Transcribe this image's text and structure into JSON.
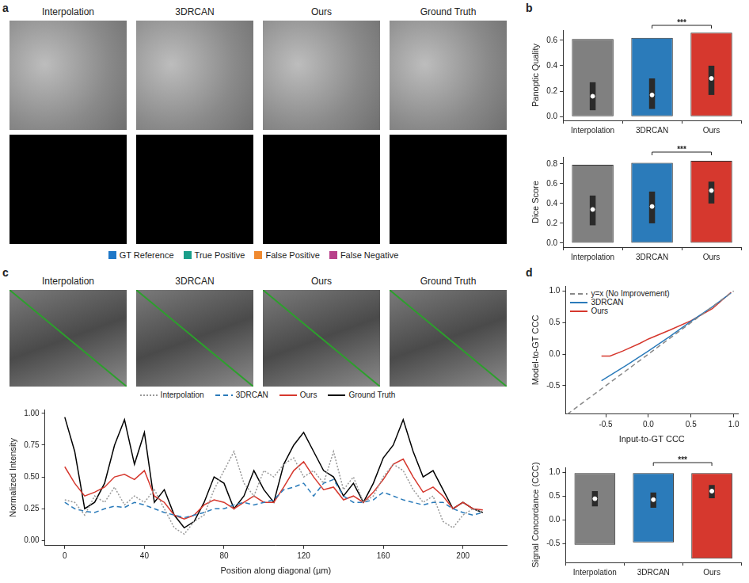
{
  "panel_letters": [
    "a",
    "b",
    "c",
    "d"
  ],
  "images": {
    "a": {
      "titles": [
        "Interpolation",
        "3DRCAN",
        "Ours",
        "Ground Truth"
      ],
      "mask_legend": [
        {
          "name": "GT Reference",
          "color": "#1f78c8"
        },
        {
          "name": "True Positive",
          "color": "#1a9e8a"
        },
        {
          "name": "False Positive",
          "color": "#f08a30"
        },
        {
          "name": "False Negative",
          "color": "#b8408a"
        }
      ]
    },
    "c": {
      "titles": [
        "Interpolation",
        "3DRCAN",
        "Ours",
        "Ground Truth"
      ]
    }
  },
  "chart_data": [
    {
      "type": "violin",
      "y_label": "Panoptic Quality",
      "categories": [
        "Interpolation",
        "3DRCAN",
        "Ours"
      ],
      "colors": [
        "#808080",
        "#2b7bba",
        "#d6382e"
      ],
      "min": [
        0,
        0,
        0
      ],
      "q1": [
        0.05,
        0.06,
        0.17
      ],
      "median": [
        0.16,
        0.17,
        0.3
      ],
      "q3": [
        0.27,
        0.3,
        0.4
      ],
      "max": [
        0.61,
        0.62,
        0.66
      ],
      "ylim": [
        -0.03,
        0.68
      ],
      "yticks": [
        {
          "value": 0,
          "label": "0.0"
        },
        0.2,
        0.4,
        0.6
      ],
      "grid": false,
      "annotations": [
        {
          "text": "***",
          "from": "3DRCAN",
          "to": "Ours"
        }
      ]
    },
    {
      "type": "violin",
      "y_label": "Dice Score",
      "categories": [
        "Interpolation",
        "3DRCAN",
        "Ours"
      ],
      "colors": [
        "#808080",
        "#2b7bba",
        "#d6382e"
      ],
      "min": [
        0,
        0,
        0
      ],
      "q1": [
        0.18,
        0.2,
        0.4
      ],
      "median": [
        0.34,
        0.37,
        0.53
      ],
      "q3": [
        0.48,
        0.52,
        0.62
      ],
      "max": [
        0.79,
        0.81,
        0.83
      ],
      "ylim": [
        -0.04,
        0.87
      ],
      "yticks": [
        {
          "value": 0,
          "label": "0.0"
        },
        0.2,
        0.4,
        0.6,
        0.8
      ],
      "grid": false,
      "annotations": [
        {
          "text": "***",
          "from": "3DRCAN",
          "to": "Ours"
        }
      ]
    },
    {
      "type": "line",
      "x_label": "Position along diagonal (µm)",
      "y_label": "Normalized Intensity",
      "x": [
        0,
        5,
        10,
        15,
        20,
        25,
        30,
        35,
        40,
        45,
        50,
        55,
        60,
        65,
        70,
        75,
        80,
        85,
        90,
        95,
        100,
        105,
        110,
        115,
        120,
        125,
        130,
        135,
        140,
        145,
        150,
        155,
        160,
        165,
        170,
        175,
        180,
        185,
        190,
        195,
        200,
        205,
        210
      ],
      "series": [
        {
          "name": "Interpolation",
          "color": "#999999",
          "line_style": "dotted",
          "values": [
            0.32,
            0.3,
            0.2,
            0.35,
            0.3,
            0.42,
            0.28,
            0.35,
            0.3,
            0.4,
            0.25,
            0.1,
            0.05,
            0.15,
            0.2,
            0.4,
            0.55,
            0.7,
            0.45,
            0.35,
            0.55,
            0.5,
            0.6,
            0.65,
            0.5,
            0.55,
            0.45,
            0.7,
            0.4,
            0.5,
            0.3,
            0.35,
            0.5,
            0.6,
            0.55,
            0.4,
            0.3,
            0.35,
            0.15,
            0.1,
            0.2,
            0.25,
            0.22
          ]
        },
        {
          "name": "3DRCAN",
          "color": "#2b7bba",
          "line_style": "dashed",
          "values": [
            0.3,
            0.25,
            0.23,
            0.22,
            0.25,
            0.27,
            0.26,
            0.3,
            0.28,
            0.25,
            0.22,
            0.2,
            0.18,
            0.2,
            0.22,
            0.25,
            0.25,
            0.28,
            0.3,
            0.28,
            0.3,
            0.32,
            0.4,
            0.42,
            0.45,
            0.35,
            0.45,
            0.48,
            0.35,
            0.3,
            0.3,
            0.32,
            0.38,
            0.35,
            0.32,
            0.3,
            0.28,
            0.3,
            0.3,
            0.25,
            0.22,
            0.2,
            0.22
          ]
        },
        {
          "name": "Ours",
          "color": "#d6382e",
          "line_style": "solid",
          "values": [
            0.58,
            0.45,
            0.35,
            0.38,
            0.42,
            0.5,
            0.52,
            0.48,
            0.55,
            0.35,
            0.3,
            0.2,
            0.17,
            0.2,
            0.28,
            0.32,
            0.3,
            0.25,
            0.3,
            0.35,
            0.3,
            0.3,
            0.42,
            0.55,
            0.62,
            0.5,
            0.4,
            0.42,
            0.32,
            0.35,
            0.3,
            0.38,
            0.48,
            0.6,
            0.64,
            0.5,
            0.38,
            0.42,
            0.35,
            0.25,
            0.3,
            0.25,
            0.24
          ]
        },
        {
          "name": "Ground Truth",
          "color": "#000000",
          "line_style": "solid",
          "values": [
            0.97,
            0.7,
            0.25,
            0.3,
            0.45,
            0.75,
            0.95,
            0.6,
            0.85,
            0.3,
            0.4,
            0.2,
            0.1,
            0.15,
            0.3,
            0.5,
            0.45,
            0.25,
            0.35,
            0.55,
            0.4,
            0.3,
            0.6,
            0.75,
            0.85,
            0.7,
            0.55,
            0.5,
            0.35,
            0.45,
            0.3,
            0.45,
            0.65,
            0.75,
            0.95,
            0.7,
            0.5,
            0.55,
            0.4,
            0.25,
            0.3,
            0.25,
            0.22
          ]
        }
      ],
      "xlim": [
        -10,
        222
      ],
      "xticks": [
        0,
        40,
        80,
        120,
        160,
        200
      ],
      "ylim": [
        -0.04,
        1.03
      ],
      "yticks": [
        {
          "value": 0,
          "label": "0.00"
        },
        0.25,
        {
          "value": 0.5,
          "label": "0.50"
        },
        0.75,
        {
          "value": 1,
          "label": "1.00"
        }
      ],
      "grid": false,
      "legend": "top"
    },
    {
      "type": "line",
      "x_label": "Input-to-GT CCC",
      "y_label": "Model-to-GT CCC",
      "series": [
        {
          "name": "y=x (No Improvement)",
          "color": "#888888",
          "line_style": "dashed",
          "x": [
            -0.95,
            1.0
          ],
          "values": [
            -0.95,
            1.0
          ]
        },
        {
          "name": "3DRCAN",
          "color": "#2b7bba",
          "line_style": "solid",
          "x": [
            -0.55,
            -0.25,
            0,
            0.25,
            0.5,
            0.75,
            0.97
          ],
          "values": [
            -0.42,
            -0.17,
            0.05,
            0.28,
            0.52,
            0.75,
            0.97
          ]
        },
        {
          "name": "Ours",
          "color": "#d6382e",
          "line_style": "solid",
          "x": [
            -0.55,
            -0.45,
            -0.3,
            -0.1,
            0,
            0.25,
            0.5,
            0.75,
            0.97
          ],
          "values": [
            -0.03,
            -0.03,
            0.05,
            0.17,
            0.24,
            0.38,
            0.53,
            0.72,
            0.98
          ]
        }
      ],
      "xlim": [
        -0.97,
        1.05
      ],
      "xticks": [
        -0.5,
        {
          "value": 0,
          "label": "0.0"
        },
        0.5,
        {
          "value": 1,
          "label": "1.0"
        }
      ],
      "ylim": [
        -0.95,
        1.08
      ],
      "yticks": [
        -0.5,
        {
          "value": 0,
          "label": "0.0"
        },
        0.5,
        {
          "value": 1,
          "label": "1.0"
        }
      ],
      "grid": false,
      "legend": "upper left"
    },
    {
      "type": "violin",
      "y_label": "Signal Concordance (CCC)",
      "categories": [
        "Interpolation",
        "3DRCAN",
        "Ours"
      ],
      "colors": [
        "#808080",
        "#2b7bba",
        "#d6382e"
      ],
      "min": [
        -0.53,
        -0.48,
        -0.82
      ],
      "q1": [
        0.28,
        0.25,
        0.45
      ],
      "median": [
        0.44,
        0.42,
        0.6
      ],
      "q3": [
        0.6,
        0.57,
        0.73
      ],
      "max": [
        0.98,
        0.98,
        0.98
      ],
      "ylim": [
        -0.9,
        1.1
      ],
      "yticks": [
        -0.5,
        {
          "value": 0,
          "label": "0.0"
        },
        0.5,
        {
          "value": 1,
          "label": "1.0"
        }
      ],
      "grid": false,
      "annotations": [
        {
          "text": "***",
          "from": "3DRCAN",
          "to": "Ours"
        }
      ]
    }
  ]
}
